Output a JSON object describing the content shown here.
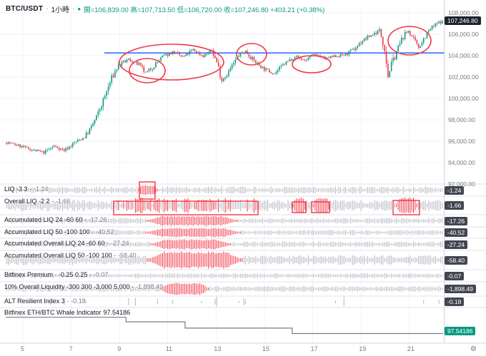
{
  "header": {
    "symbol": "BTC/USDT",
    "separator": "·",
    "interval": "1小時",
    "status_dot": "●",
    "status_color": "#089981",
    "ohlc": "開=106,839.00 高=107,713.50 低=106,720.00 收=107,246.80 +403.21 (+0.38%)",
    "ohlc_color": "#089981"
  },
  "price_axis": {
    "labels": [
      "108,000.00",
      "106,000.00",
      "104,000.00",
      "102,000.00",
      "100,000.00",
      "98,000.00",
      "96,000.00",
      "94,000.00",
      "92,000.00"
    ],
    "last_price": "107,246.80",
    "last_price_bg": "#1e222d"
  },
  "time_axis": {
    "labels": [
      "5",
      "7",
      "9",
      "11",
      "13",
      "15",
      "17",
      "19",
      "21"
    ],
    "settings_icon": "⚙"
  },
  "panes": [
    {
      "id": "liq",
      "label": "LIQ -3 3 ·",
      "value": "-1.24",
      "badge": "-1.24",
      "badge_bg": "#434651",
      "value_color": "#787b86"
    },
    {
      "id": "overall-liq",
      "label": "Overall LIQ -2 2 ·",
      "value": "-1.66",
      "badge": "-1.66",
      "badge_bg": "#434651",
      "value_color": "#787b86"
    },
    {
      "id": "accumulated-liq-24",
      "label": "Accumulated LIQ 24 -60 60 ·",
      "value": "-17.26",
      "badge": "-17.26",
      "badge_bg": "#434651",
      "value_color": "#787b86"
    },
    {
      "id": "accumulated-liq-50",
      "label": "Accumulated LIQ 50 -100 100 ·",
      "value": "-40.52",
      "badge": "-40.52",
      "badge_bg": "#434651",
      "value_color": "#787b86"
    },
    {
      "id": "accumulated-overall-liq-24",
      "label": "Accumulated Overall LIQ 24 -60 60 ·",
      "value": "-27.24",
      "badge": "-27.24",
      "badge_bg": "#434651",
      "value_color": "#787b86"
    },
    {
      "id": "accumulated-overall-liq-50",
      "label": "Accumulated Overall LIQ 50 -100 100 ·",
      "value": "-58.40",
      "badge": "-58.40",
      "badge_bg": "#434651",
      "value_color": "#787b86"
    },
    {
      "id": "bitfinex-premium",
      "label": "Bitfinex Premium · -0.25 0.25 ·",
      "value": "-0.07",
      "badge": "-0.07",
      "badge_bg": "#434651",
      "value_color": "#787b86"
    },
    {
      "id": "overall-liquidity-10",
      "label": "10% Overall Liquidity -300 300 -3,000 5,000 ·",
      "value": "-1,898.49",
      "badge": "-1,898.49",
      "badge_bg": "#434651",
      "value_color": "#787b86"
    },
    {
      "id": "alt-resilient-index",
      "label": "ALT Resilient Index 3 ·",
      "value": "-0.18",
      "badge": "-0.18",
      "badge_bg": "#434651",
      "value_color": "#787b86"
    },
    {
      "id": "whale-indicator",
      "label": "Bitfinex ETH/BTC Whale Indicator",
      "value": "97.54186",
      "badge": "97.54186",
      "badge_bg": "#089981",
      "value_color": "#131722"
    }
  ],
  "chart_data": {
    "type": "candlestick",
    "title": "BTC/USDT 1小時",
    "last_candle": {
      "open": 106839.0,
      "high": 107713.5,
      "low": 106720.0,
      "close": 107246.8,
      "change": 403.21,
      "change_pct": 0.38
    },
    "price_range": [
      92000,
      108000
    ],
    "grid_step": 2000,
    "time_days": [
      5,
      7,
      9,
      11,
      13,
      15,
      17,
      19,
      21
    ],
    "up_color": "#089981",
    "down_color": "#f23645",
    "num_candles": 258,
    "anchors": [
      [
        0,
        95900
      ],
      [
        8,
        95550
      ],
      [
        16,
        95150
      ],
      [
        22,
        94950
      ],
      [
        28,
        95550
      ],
      [
        34,
        95150
      ],
      [
        40,
        95850
      ],
      [
        46,
        96400
      ],
      [
        50,
        97300
      ],
      [
        54,
        98600
      ],
      [
        58,
        100200
      ],
      [
        62,
        101900
      ],
      [
        66,
        103100
      ],
      [
        72,
        103650
      ],
      [
        78,
        103150
      ],
      [
        82,
        102350
      ],
      [
        86,
        102900
      ],
      [
        92,
        103900
      ],
      [
        98,
        104350
      ],
      [
        104,
        103850
      ],
      [
        110,
        104550
      ],
      [
        116,
        103950
      ],
      [
        121,
        104500
      ],
      [
        124,
        103400
      ],
      [
        127,
        101700
      ],
      [
        131,
        102500
      ],
      [
        137,
        104050
      ],
      [
        141,
        104400
      ],
      [
        146,
        103500
      ],
      [
        152,
        102750
      ],
      [
        158,
        102350
      ],
      [
        164,
        103250
      ],
      [
        170,
        103950
      ],
      [
        176,
        103550
      ],
      [
        182,
        104150
      ],
      [
        188,
        103700
      ],
      [
        194,
        103950
      ],
      [
        200,
        104100
      ],
      [
        205,
        104600
      ],
      [
        210,
        105400
      ],
      [
        215,
        105900
      ],
      [
        220,
        106350
      ],
      [
        223,
        104900
      ],
      [
        225,
        102100
      ],
      [
        227,
        103100
      ],
      [
        230,
        104400
      ],
      [
        234,
        105800
      ],
      [
        237,
        106350
      ],
      [
        240,
        105500
      ],
      [
        243,
        104750
      ],
      [
        246,
        105600
      ],
      [
        250,
        106500
      ],
      [
        254,
        107000
      ],
      [
        257,
        107246.8
      ]
    ],
    "resistance_line": {
      "color": "#2962ff",
      "price": 104250
    },
    "annotation_color": "#f23645",
    "indicators": [
      {
        "name": "LIQ",
        "params": "-3 3",
        "value": -1.24,
        "seed": 11,
        "amp": 0.55,
        "red_zones": [
          [
            0.3,
            0.345,
            0.9
          ]
        ]
      },
      {
        "name": "Overall LIQ",
        "params": "-2 2",
        "value": -1.66,
        "seed": 22,
        "amp": 0.55,
        "red_zones": [
          [
            0.25,
            0.575,
            0.45
          ],
          [
            0.655,
            0.685,
            0.9
          ],
          [
            0.7,
            0.74,
            0.9
          ],
          [
            0.89,
            0.94,
            0.9
          ]
        ]
      },
      {
        "name": "Accumulated LIQ 24",
        "params": "-60 60",
        "value": -17.26,
        "seed": 33,
        "amp": 0.4,
        "red_zones": [
          [
            0.318,
            0.53,
            1.0
          ]
        ]
      },
      {
        "name": "Accumulated LIQ 50",
        "params": "-100 100",
        "value": -40.52,
        "seed": 44,
        "amp": 0.4,
        "red_zones": [
          [
            0.315,
            0.538,
            1.0
          ]
        ]
      },
      {
        "name": "Accumulated Overall LIQ 24",
        "params": "-60 60",
        "value": -27.24,
        "seed": 55,
        "amp": 0.4,
        "red_zones": [
          [
            0.328,
            0.515,
            1.0
          ]
        ]
      },
      {
        "name": "Accumulated Overall LIQ 50",
        "params": "-100 100",
        "value": -58.4,
        "seed": 66,
        "amp": 0.4,
        "red_zones": [
          [
            0.318,
            0.542,
            1.0
          ]
        ]
      },
      {
        "name": "Bitfinex Premium",
        "params": "-0.25 0.25",
        "value": -0.07,
        "seed": 77,
        "amp": 0.32,
        "red_zones": []
      },
      {
        "name": "10% Overall Liquidity",
        "params": "-300 300 -3,000 5,000",
        "value": -1898.49,
        "seed": 88,
        "amp": 0.3,
        "red_zones": [
          [
            0.35,
            0.465,
            0.97
          ]
        ]
      },
      {
        "name": "ALT Resilient Index",
        "params": "3",
        "value": -0.18,
        "seed": 99,
        "amp": 0.9,
        "sparse": 0.9,
        "red_zones": []
      }
    ],
    "whale": {
      "name": "Bitfinex ETH/BTC Whale Indicator",
      "value": 97.54186,
      "range": [
        97.5,
        97.65
      ],
      "color": "#787b86",
      "steps": [
        [
          0.0,
          97.62
        ],
        [
          0.275,
          97.62
        ],
        [
          0.275,
          97.598
        ],
        [
          0.41,
          97.598
        ],
        [
          0.41,
          97.568
        ],
        [
          0.655,
          97.568
        ],
        [
          0.655,
          97.54186
        ],
        [
          1.0,
          97.54186
        ]
      ]
    }
  }
}
